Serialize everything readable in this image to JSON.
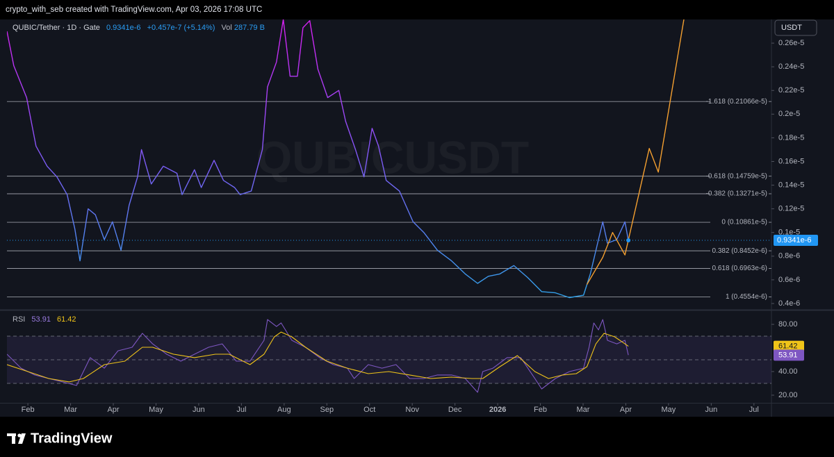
{
  "header": {
    "attribution": "crypto_with_seb created with TradingView.com, Apr 03, 2026 17:08 UTC"
  },
  "footer": {
    "brand": "TradingView"
  },
  "chart_data": [
    {
      "type": "line",
      "symbol": "QUBIC/Tether · 1D · Gate",
      "change": "+0.457e-7 (+5.14%)",
      "volume_label": "Vol",
      "volume": "287.79 B",
      "watermark": "QUBICUSDT",
      "currency": "USDT",
      "last_price": {
        "value": 9.341e-07,
        "label": "0.9341e-6",
        "color": "#2196f3"
      },
      "xlim": [
        0.51,
        18.41
      ],
      "ylim": [
        3.5e-07,
        2.8e-06
      ],
      "yticks": [
        {
          "value": 2.6e-06,
          "label": "0.26e-5"
        },
        {
          "value": 2.4e-06,
          "label": "0.24e-5"
        },
        {
          "value": 2.2e-06,
          "label": "0.22e-5"
        },
        {
          "value": 2e-06,
          "label": "0.2e-5"
        },
        {
          "value": 1.8e-06,
          "label": "0.18e-5"
        },
        {
          "value": 1.6e-06,
          "label": "0.16e-5"
        },
        {
          "value": 1.4e-06,
          "label": "0.14e-5"
        },
        {
          "value": 1.2e-06,
          "label": "0.12e-5"
        },
        {
          "value": 1e-06,
          "label": "0.1e-5"
        },
        {
          "value": 8e-07,
          "label": "0.8e-6"
        },
        {
          "value": 6e-07,
          "label": "0.6e-6"
        },
        {
          "value": 4e-07,
          "label": "0.4e-6"
        }
      ],
      "fib_levels": [
        {
          "value": 2.1066e-06,
          "label": "-1.618 (0.21066e-5)"
        },
        {
          "value": 1.4759e-06,
          "label": "-0.618 (0.14759e-5)"
        },
        {
          "value": 1.3271e-06,
          "label": "-0.382 (0.13271e-5)"
        },
        {
          "value": 1.0861e-06,
          "label": "0 (0.10861e-5)"
        },
        {
          "value": 8.452e-07,
          "label": "0.382 (0.8452e-6)"
        },
        {
          "value": 6.963e-07,
          "label": "0.618 (0.6963e-6)"
        },
        {
          "value": 4.554e-07,
          "label": "1 (0.4554e-6)"
        }
      ],
      "series": [
        {
          "gradient": [
            "#d620f2",
            "#7b5cf5",
            "#2aa8e8"
          ],
          "x": [
            0.51,
            0.67,
            0.97,
            1.19,
            1.45,
            1.68,
            1.92,
            2.1,
            2.22,
            2.41,
            2.58,
            2.79,
            2.98,
            3.18,
            3.37,
            3.57,
            3.66,
            3.89,
            4.17,
            4.49,
            4.61,
            4.9,
            5.06,
            5.36,
            5.58,
            5.84,
            5.97,
            6.23,
            6.49,
            6.61,
            6.82,
            6.98,
            7.14,
            7.31,
            7.44,
            7.6,
            7.79,
            8.02,
            8.28,
            8.44,
            8.67,
            8.87,
            9.06,
            9.21,
            9.39,
            9.7,
            10.02,
            10.27,
            10.59,
            10.92,
            11.24,
            11.53,
            11.78,
            12.05,
            12.38,
            12.7,
            13.03,
            13.35,
            13.68,
            14.01,
            14.17,
            14.36,
            14.46,
            14.57,
            14.79,
            14.98,
            15.06
          ],
          "values": [
            2.7e-06,
            2.41e-06,
            2.14e-06,
            1.73e-06,
            1.56e-06,
            1.47e-06,
            1.32e-06,
            1.03e-06,
            7.6e-07,
            1.2e-06,
            1.15e-06,
            9.4e-07,
            1.09e-06,
            8.5e-07,
            1.23e-06,
            1.47e-06,
            1.7e-06,
            1.41e-06,
            1.56e-06,
            1.5e-06,
            1.32e-06,
            1.53e-06,
            1.38e-06,
            1.61e-06,
            1.44e-06,
            1.38e-06,
            1.32e-06,
            1.35e-06,
            1.7e-06,
            2.23e-06,
            2.44e-06,
            2.8e-06,
            2.32e-06,
            2.32e-06,
            2.73e-06,
            2.79e-06,
            2.38e-06,
            2.14e-06,
            2.2e-06,
            1.94e-06,
            1.7e-06,
            1.47e-06,
            1.88e-06,
            1.73e-06,
            1.44e-06,
            1.35e-06,
            1.09e-06,
            1e-06,
            8.5e-07,
            7.6e-07,
            6.5e-07,
            5.7e-07,
            6.3e-07,
            6.5e-07,
            7.2e-07,
            6.2e-07,
            5e-07,
            4.9e-07,
            4.5e-07,
            4.7e-07,
            6.5e-07,
            9.4e-07,
            1.09e-06,
            9.1e-07,
            9.4e-07,
            1.09e-06,
            9.341e-07
          ]
        },
        {
          "color": "#f5a030",
          "x": [
            14.09,
            14.46,
            14.69,
            14.98,
            15.55,
            15.76,
            16.36
          ],
          "values": [
            5.6e-07,
            7.9e-07,
            1e-06,
            8.1e-07,
            1.71e-06,
            1.51e-06,
            2.8e-06
          ]
        }
      ]
    },
    {
      "type": "line",
      "title": "RSI",
      "xlim": [
        0.51,
        18.41
      ],
      "ylim": [
        13.5,
        91.2
      ],
      "yticks": [
        {
          "value": 80,
          "label": "80.00"
        },
        {
          "value": 40,
          "label": "40.00"
        },
        {
          "value": 20,
          "label": "20.00"
        }
      ],
      "levels": [
        70,
        50,
        30
      ],
      "band": [
        30,
        70
      ],
      "band_color": "#7e57c2",
      "xticks": [
        {
          "value": 1,
          "label": "Feb"
        },
        {
          "value": 2,
          "label": "Mar"
        },
        {
          "value": 3,
          "label": "Apr"
        },
        {
          "value": 4,
          "label": "May"
        },
        {
          "value": 5,
          "label": "Jun"
        },
        {
          "value": 6,
          "label": "Jul"
        },
        {
          "value": 7,
          "label": "Aug"
        },
        {
          "value": 8,
          "label": "Sep"
        },
        {
          "value": 9,
          "label": "Oct"
        },
        {
          "value": 10,
          "label": "Nov"
        },
        {
          "value": 11,
          "label": "Dec"
        },
        {
          "value": 12,
          "label": "2026"
        },
        {
          "value": 13,
          "label": "Feb"
        },
        {
          "value": 14,
          "label": "Mar"
        },
        {
          "value": 15,
          "label": "Apr"
        },
        {
          "value": 16,
          "label": "May"
        },
        {
          "value": 17,
          "label": "Jun"
        },
        {
          "value": 18,
          "label": "Jul"
        }
      ],
      "series": [
        {
          "color": "#7e57c2",
          "x": [
            0.51,
            0.84,
            1.16,
            1.49,
            1.81,
            2.14,
            2.46,
            2.79,
            3.11,
            3.44,
            3.68,
            3.92,
            4.25,
            4.58,
            4.9,
            5.23,
            5.55,
            5.88,
            6.2,
            6.53,
            6.61,
            6.82,
            6.93,
            7.18,
            7.5,
            7.83,
            8.15,
            8.48,
            8.64,
            8.97,
            9.29,
            9.62,
            9.94,
            10.27,
            10.59,
            10.92,
            11.24,
            11.53,
            11.65,
            11.89,
            12.22,
            12.54,
            12.87,
            13.03,
            13.35,
            13.68,
            14.01,
            14.14,
            14.25,
            14.36,
            14.46,
            14.57,
            14.79,
            14.98,
            15.06
          ],
          "values": [
            54.7,
            42.9,
            37.1,
            34.1,
            31.2,
            28.2,
            51.8,
            42.9,
            57.6,
            60.6,
            72.4,
            63.5,
            54.7,
            48.8,
            54.7,
            60.6,
            63.5,
            48.8,
            48.8,
            66.5,
            84.1,
            78.2,
            81.2,
            66.5,
            60.6,
            51.8,
            45.9,
            42.9,
            34.1,
            45.9,
            42.9,
            45.9,
            34.1,
            34.1,
            37.1,
            37.1,
            34.1,
            22.4,
            40.0,
            42.9,
            51.8,
            51.8,
            34.1,
            25.3,
            34.1,
            40.0,
            42.9,
            60.6,
            81.2,
            75.3,
            84.1,
            66.5,
            63.5,
            66.5,
            53.91
          ]
        },
        {
          "color": "#f0c419",
          "x": [
            0.51,
            1.0,
            1.49,
            1.97,
            2.3,
            2.79,
            3.27,
            3.68,
            3.92,
            4.41,
            4.9,
            5.39,
            5.71,
            6.2,
            6.53,
            6.77,
            6.93,
            7.18,
            7.5,
            8.0,
            8.48,
            8.97,
            9.45,
            9.94,
            10.43,
            10.92,
            11.4,
            11.65,
            12.05,
            12.46,
            12.87,
            13.19,
            13.52,
            13.84,
            14.09,
            14.3,
            14.49,
            14.74,
            14.98,
            15.06
          ],
          "values": [
            45.9,
            40.0,
            34.1,
            31.2,
            34.1,
            45.9,
            48.8,
            60.6,
            60.6,
            54.7,
            51.8,
            54.7,
            54.7,
            45.9,
            54.7,
            69.4,
            73.5,
            69.4,
            60.6,
            48.8,
            42.9,
            38.2,
            40.0,
            37.1,
            34.1,
            35.3,
            34.1,
            34.1,
            44.1,
            53.5,
            40.0,
            34.1,
            37.1,
            38.2,
            44.1,
            63.5,
            72.4,
            69.4,
            63.5,
            61.42
          ]
        }
      ]
    }
  ]
}
